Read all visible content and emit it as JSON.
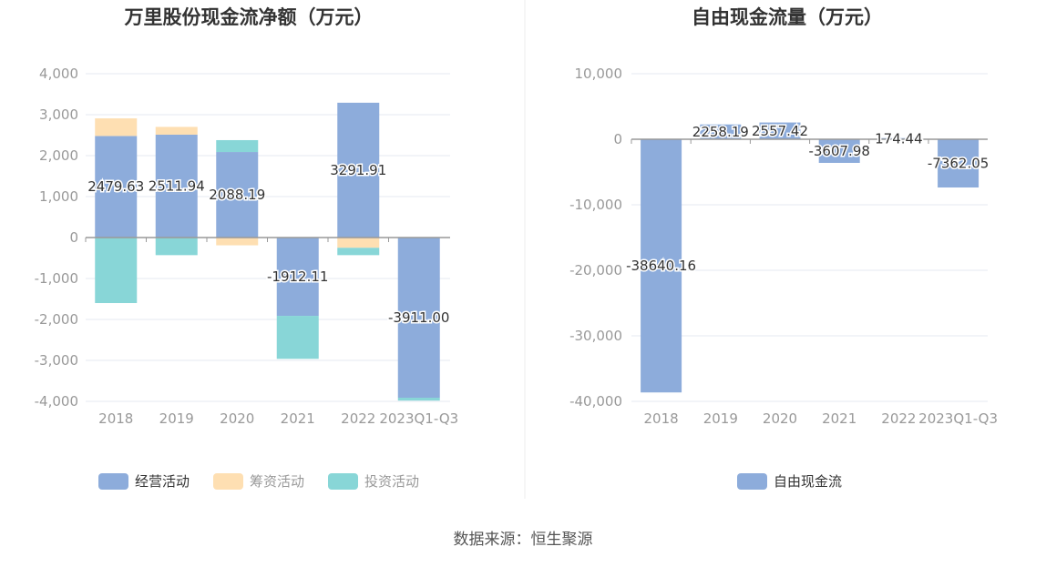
{
  "footer": {
    "source": "数据来源：恒生聚源"
  },
  "colors": {
    "operating": "#8dacdb",
    "financing": "#fedfb2",
    "investing": "#88d6d7",
    "fcf": "#8dacdb",
    "grid": "#e6e9f0",
    "zero_axis": "#999999"
  },
  "chart_data": [
    {
      "type": "bar",
      "stacked": true,
      "title": "万里股份现金流净额（万元）",
      "categories": [
        "2018",
        "2019",
        "2020",
        "2021",
        "2022",
        "2023Q1-Q3"
      ],
      "ylim": [
        -4000,
        4000
      ],
      "yticks": [
        4000,
        3000,
        2000,
        1000,
        0,
        -1000,
        -2000,
        -3000,
        -4000
      ],
      "ytick_labels": [
        "4,000",
        "3,000",
        "2,000",
        "1,000",
        "0",
        "-1,000",
        "-2,000",
        "-3,000",
        "-4,000"
      ],
      "grid": true,
      "legend_position": "bottom",
      "series": [
        {
          "name": "经营活动",
          "color_key": "operating",
          "values": [
            2479.63,
            2511.94,
            2088.19,
            -1912.11,
            3291.91,
            -3911.0
          ],
          "labels": [
            "2479.63",
            "2511.94",
            "2088.19",
            "-1912.11",
            "3291.91",
            "-3911.00"
          ]
        },
        {
          "name": "筹资活动",
          "color_key": "financing",
          "values": [
            430,
            190,
            -190,
            0,
            -250,
            0
          ]
        },
        {
          "name": "投资活动",
          "color_key": "investing",
          "values": [
            -1600,
            -430,
            290,
            -1050,
            -180,
            -70
          ]
        }
      ]
    },
    {
      "type": "bar",
      "title": "自由现金流量（万元）",
      "categories": [
        "2018",
        "2019",
        "2020",
        "2021",
        "2022",
        "2023Q1-Q3"
      ],
      "ylim": [
        -40000,
        10000
      ],
      "yticks": [
        10000,
        0,
        -10000,
        -20000,
        -30000,
        -40000
      ],
      "ytick_labels": [
        "10,000",
        "0",
        "-10,000",
        "-20,000",
        "-30,000",
        "-40,000"
      ],
      "grid": true,
      "legend_position": "bottom",
      "series": [
        {
          "name": "自由现金流",
          "color_key": "fcf",
          "values": [
            -38640.16,
            2258.19,
            2557.42,
            -3607.98,
            174.44,
            -7362.05
          ],
          "labels": [
            "-38640.16",
            "2258.19",
            "2557.42",
            "-3607.98",
            "174.44",
            "-7362.05"
          ]
        }
      ]
    }
  ]
}
